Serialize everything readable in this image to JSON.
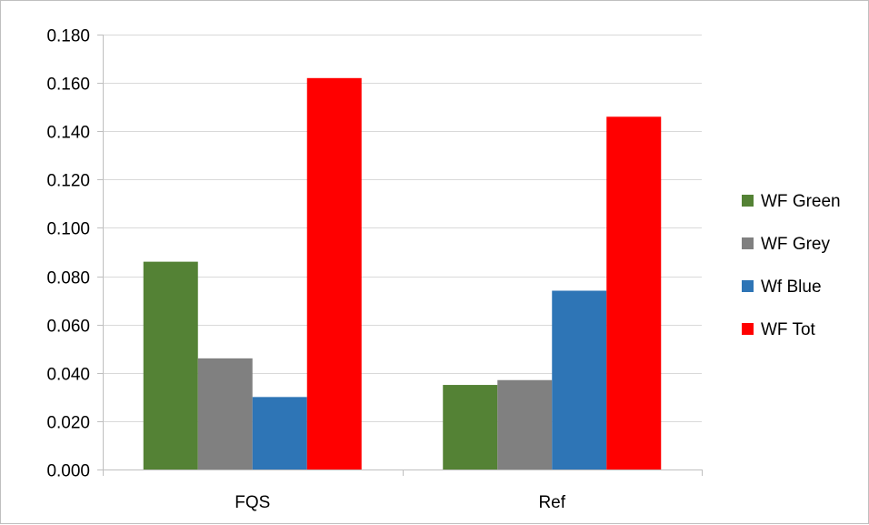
{
  "chart_data": {
    "type": "bar",
    "categories": [
      "FQS",
      "Ref"
    ],
    "series": [
      {
        "name": "WF Green",
        "color": "#548235",
        "values": [
          0.086,
          0.035
        ]
      },
      {
        "name": "WF Grey",
        "color": "#808080",
        "values": [
          0.046,
          0.037
        ]
      },
      {
        "name": "Wf Blue",
        "color": "#2e75b6",
        "values": [
          0.03,
          0.074
        ]
      },
      {
        "name": "WF Tot",
        "color": "#ff0000",
        "values": [
          0.162,
          0.146
        ]
      }
    ],
    "ylim": [
      0,
      0.18
    ],
    "yticks": [
      "0.000",
      "0.020",
      "0.040",
      "0.060",
      "0.080",
      "0.100",
      "0.120",
      "0.140",
      "0.160",
      "0.180"
    ],
    "grid": true,
    "legend_position": "right"
  }
}
